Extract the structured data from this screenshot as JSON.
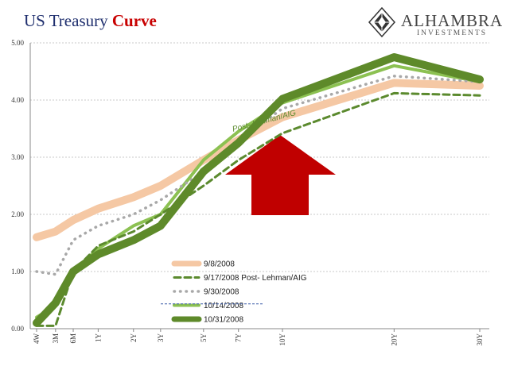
{
  "title": {
    "main": "US Treasury",
    "accent": "Curve"
  },
  "logo": {
    "name": "ALHAMBRA",
    "sub": "INVESTMENTS"
  },
  "colors": {
    "title": "#1f2f6e",
    "accent": "#c80000",
    "arrow": "#c00000"
  },
  "annotation": "Post- Lehman/AIG",
  "chart_data": {
    "type": "line",
    "title": "US Treasury Curve",
    "x": [
      "4W",
      "3M",
      "6M",
      "1Y",
      "2Y",
      "3Y",
      "5Y",
      "7Y",
      "10Y",
      "20Y",
      "30Y"
    ],
    "ylim": [
      0,
      5
    ],
    "yticks": [
      "0.00",
      "1.00",
      "2.00",
      "3.00",
      "4.00",
      "5.00"
    ],
    "grid": true,
    "legend_position": "lower-center",
    "series": [
      {
        "name": "9/8/2008",
        "label": "9/8/2008",
        "color": "#f5c8a4",
        "style": "thick",
        "values": [
          1.6,
          1.7,
          1.9,
          2.1,
          2.3,
          2.5,
          2.95,
          3.3,
          3.7,
          4.3,
          4.25
        ]
      },
      {
        "name": "9/17/2008",
        "label": "9/17/2008   Post- Lehman/AIG",
        "color": "#5b8a2e",
        "style": "dashed",
        "values": [
          0.05,
          0.05,
          1.0,
          1.45,
          1.7,
          2.0,
          2.5,
          2.95,
          3.42,
          4.12,
          4.08
        ]
      },
      {
        "name": "9/30/2008",
        "label": "9/30/2008",
        "color": "#a8a8a8",
        "style": "dotted",
        "values": [
          1.0,
          0.95,
          1.55,
          1.8,
          2.0,
          2.25,
          2.75,
          3.3,
          3.85,
          4.42,
          4.32
        ]
      },
      {
        "name": "10/14/2008",
        "label": "10/14/2008",
        "color": "#8cc152",
        "style": "solid",
        "values": [
          0.2,
          0.4,
          1.0,
          1.4,
          1.8,
          2.0,
          2.95,
          3.45,
          3.95,
          4.6,
          4.32
        ]
      },
      {
        "name": "10/31/2008",
        "label": "10/31/2008",
        "color": "#5e8a2a",
        "style": "thick",
        "values": [
          0.1,
          0.45,
          1.0,
          1.3,
          1.55,
          1.8,
          2.75,
          3.25,
          4.02,
          4.75,
          4.36
        ]
      }
    ]
  }
}
